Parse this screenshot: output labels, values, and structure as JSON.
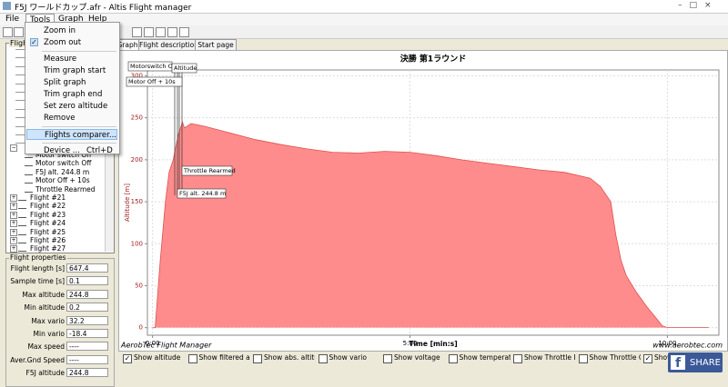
{
  "window": {
    "title": "F5J ワールドカップ.afr - Altis Flight manager"
  },
  "menubar": [
    "File",
    "Tools",
    "Graph",
    "Help"
  ],
  "tools_menu": {
    "groups": [
      [
        {
          "label": "Zoom in"
        },
        {
          "label": "Zoom out",
          "checked": true
        }
      ],
      [
        {
          "label": "Measure"
        },
        {
          "label": "Trim graph start"
        },
        {
          "label": "Split graph"
        },
        {
          "label": "Trim graph end"
        },
        {
          "label": "Set zero altitude"
        },
        {
          "label": "Remove"
        }
      ],
      [
        {
          "label": "Flights comparer...",
          "selected": true
        }
      ],
      [
        {
          "label": "Device ...",
          "shortcut": "Ctrl+D"
        }
      ]
    ]
  },
  "tabs": [
    "Graph",
    "Flight description",
    "Start page"
  ],
  "tree": {
    "header": "Flights",
    "events": [
      "Motor switch On",
      "Motor switch Off",
      "F5J alt. 244.8 m",
      "Motor Off + 10s",
      "Throttle Rearmed"
    ],
    "flights": [
      "Flight #21",
      "Flight #22",
      "Flight #23",
      "Flight #24",
      "Flight #25",
      "Flight #26",
      "Flight #27"
    ]
  },
  "flight_properties": {
    "title": "Flight properties",
    "rows": [
      [
        "Flight length [s]",
        "647.4"
      ],
      [
        "Sample time [s]",
        "0.1"
      ],
      [
        "Max altitude",
        "244.8"
      ],
      [
        "Min altitude",
        "0.2"
      ],
      [
        "Max vario",
        "32.2"
      ],
      [
        "Min vario",
        "-18.4"
      ],
      [
        "Max speed",
        "----"
      ],
      [
        "Aver.Gnd Speed",
        "----"
      ],
      [
        "F5J altitude",
        "244.8"
      ]
    ]
  },
  "chart_data": {
    "type": "area",
    "title": "決勝 第1ラウンド",
    "ylabel": "Altitude [m]",
    "xlabel": "Time [min:s]",
    "x": [
      0,
      0.05,
      0.15,
      0.25,
      0.32,
      0.4,
      0.5,
      0.58,
      0.62,
      0.75,
      1.0,
      1.5,
      2.0,
      2.5,
      3.0,
      3.5,
      4.0,
      4.5,
      5.0,
      5.5,
      6.0,
      6.5,
      7.0,
      7.5,
      8.0,
      8.5,
      8.7,
      8.9,
      9.0,
      9.1,
      9.2,
      9.4,
      9.6,
      9.8,
      9.9,
      10.0,
      10.8
    ],
    "values": [
      0,
      0,
      80,
      150,
      185,
      200,
      230,
      244.8,
      238,
      243,
      240,
      232,
      224,
      218,
      213,
      209,
      208,
      210,
      209,
      205,
      200,
      196,
      192,
      188,
      185,
      178,
      168,
      150,
      110,
      80,
      62,
      42,
      25,
      10,
      2,
      0.2,
      0.2
    ],
    "color": "#ff8c8c",
    "line_color": "#e05050",
    "xlim": [
      -0.1,
      11
    ],
    "ylim": [
      -9,
      307
    ],
    "xticks": [
      {
        "value": 0,
        "label": "0:00"
      },
      {
        "value": 5,
        "label": "5:00"
      },
      {
        "value": 10,
        "label": "10:00"
      }
    ],
    "yticks": [
      0,
      50,
      100,
      150,
      200,
      250,
      300
    ],
    "grid": true,
    "annotations": [
      "Motorswitch Off",
      "Altitude",
      "Motor Off + 10s",
      "Throttle Rearmed",
      "F5J alt. 244.8 m"
    ]
  },
  "footer": {
    "left": "AerobTec Flight Manager",
    "right": "www.aerobtec.com"
  },
  "checkboxes": [
    {
      "label": "Show altitude",
      "checked": true
    },
    {
      "label": "Show filtered altitud",
      "checked": false
    },
    {
      "label": "Show abs. altitude",
      "checked": false
    },
    {
      "label": "Show vario",
      "checked": false
    },
    {
      "label": "Show voltage",
      "checked": false
    },
    {
      "label": "Show temperature",
      "checked": false
    },
    {
      "label": "Show Throttle In",
      "checked": false
    },
    {
      "label": "Show Throttle Out",
      "checked": false
    },
    {
      "label": "Show",
      "checked": true
    }
  ],
  "share": "SHARE"
}
